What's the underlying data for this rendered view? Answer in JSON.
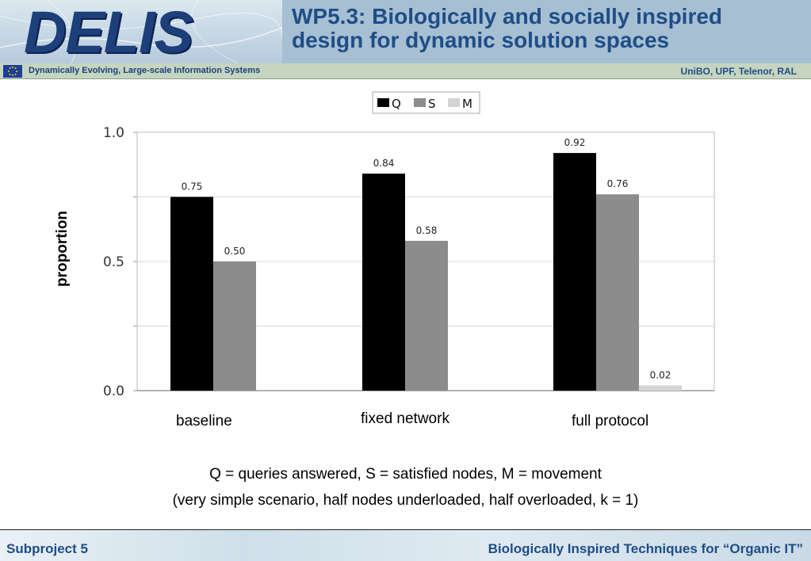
{
  "header": {
    "logo_text": "DELIS",
    "title": "WP5.3: Biologically and socially inspired\ndesign for dynamic solution spaces",
    "subtitle_left": "Dynamically Evolving, Large-scale Information Systems",
    "subtitle_right": "UniBO, UPF, Telenor, RAL"
  },
  "chart_data": {
    "type": "bar",
    "categories": [
      "baseline",
      "fixed network",
      "full protocol"
    ],
    "series": [
      {
        "name": "Q",
        "values": [
          0.75,
          0.84,
          0.92
        ],
        "labels": [
          "0.75",
          "0.84",
          "0.92"
        ],
        "color": "#000000"
      },
      {
        "name": "S",
        "values": [
          0.5,
          0.58,
          0.76
        ],
        "labels": [
          "0.50",
          "0.58",
          "0.76"
        ],
        "color": "#8c8c8c"
      },
      {
        "name": "M",
        "values": [
          null,
          null,
          0.02
        ],
        "labels": [
          "",
          "",
          "0.02"
        ],
        "color": "#d3d3d3"
      }
    ],
    "ylabel": "proportion",
    "xlabel": "",
    "ylim": [
      0,
      1.0
    ],
    "yticks": [
      "0.0",
      "0.5",
      "1.0"
    ],
    "grid": true,
    "legend_position": "top-center"
  },
  "captions": {
    "line1": "Q = queries answered, S = satisfied nodes, M = movement",
    "line2": "(very simple scenario, half nodes underloaded, half overloaded, k = 1)"
  },
  "footer": {
    "left": "Subproject 5",
    "right": "Biologically Inspired Techniques for “Organic IT”"
  }
}
